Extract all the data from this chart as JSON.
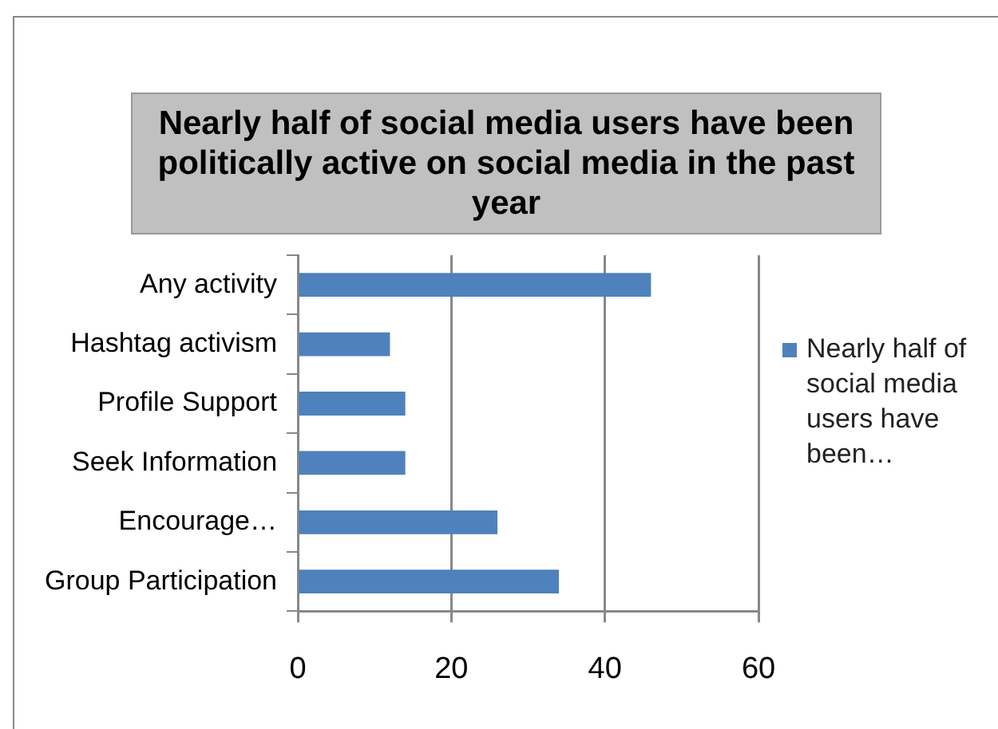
{
  "chart_data": {
    "type": "bar",
    "orientation": "horizontal",
    "title": "Nearly half of social media users have been politically active on social media in the past year",
    "categories": [
      "Any activity",
      "Hashtag activism",
      "Profile Support",
      "Seek Information",
      "Encourage…",
      "Group Participation"
    ],
    "series": [
      {
        "name": "Nearly half of social media users have been…",
        "color": "#4f81bd",
        "values": [
          46,
          12,
          14,
          14,
          26,
          34
        ]
      }
    ],
    "xlim": [
      0,
      60
    ],
    "xticks": [
      0,
      20,
      40,
      60
    ],
    "grid": "x",
    "legend": "right"
  }
}
